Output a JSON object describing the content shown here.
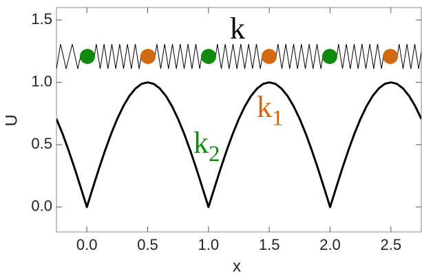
{
  "chart_data": {
    "type": "line",
    "xlabel": "x",
    "ylabel": "U",
    "x": [
      -0.25,
      -0.2,
      -0.15,
      -0.1,
      -0.05,
      0,
      0.05,
      0.1,
      0.15,
      0.2,
      0.25,
      0.3,
      0.35,
      0.4,
      0.45,
      0.5,
      0.55,
      0.6,
      0.65,
      0.7,
      0.75,
      0.8,
      0.85,
      0.9,
      0.95,
      1,
      1.05,
      1.1,
      1.15,
      1.2,
      1.25,
      1.3,
      1.35,
      1.4,
      1.45,
      1.5,
      1.55,
      1.6,
      1.65,
      1.7,
      1.75,
      1.8,
      1.85,
      1.9,
      1.95,
      2,
      2.05,
      2.1,
      2.15,
      2.2,
      2.25,
      2.3,
      2.35,
      2.4,
      2.45,
      2.5,
      2.55,
      2.6,
      2.65,
      2.7,
      2.75
    ],
    "values": [
      0.707,
      0.588,
      0.454,
      0.309,
      0.156,
      0,
      0.156,
      0.309,
      0.454,
      0.588,
      0.707,
      0.809,
      0.891,
      0.951,
      0.988,
      1,
      0.988,
      0.951,
      0.891,
      0.809,
      0.707,
      0.588,
      0.454,
      0.309,
      0.156,
      0,
      0.156,
      0.309,
      0.454,
      0.588,
      0.707,
      0.809,
      0.891,
      0.951,
      0.988,
      1,
      0.988,
      0.951,
      0.891,
      0.809,
      0.707,
      0.588,
      0.454,
      0.309,
      0.156,
      0,
      0.156,
      0.309,
      0.454,
      0.588,
      0.707,
      0.809,
      0.891,
      0.951,
      0.988,
      1,
      0.988,
      0.951,
      0.891,
      0.809,
      0.707
    ],
    "color": "#000000",
    "xlim": [
      -0.25,
      2.75
    ],
    "ylim": [
      -0.2,
      1.6
    ],
    "xticks": [
      {
        "value": 0,
        "label": "0.0"
      },
      {
        "value": 0.5,
        "label": "0.5"
      },
      {
        "value": 1,
        "label": "1.0"
      },
      {
        "value": 1.5,
        "label": "1.5"
      },
      {
        "value": 2,
        "label": "2.0"
      },
      {
        "value": 2.5,
        "label": "2.5"
      }
    ],
    "yticks": [
      {
        "value": 0,
        "label": "0.0"
      },
      {
        "value": 0.5,
        "label": "0.5"
      },
      {
        "value": 1,
        "label": "1.0"
      },
      {
        "value": 1.5,
        "label": "1.5"
      }
    ],
    "mass_colors": [
      "#118a11",
      "#d2680f"
    ],
    "annotations": [
      {
        "text": "k",
        "color": "#000000"
      },
      {
        "text": "k",
        "subscript": "1",
        "color": "#d2680f"
      },
      {
        "text": "k",
        "subscript": "2",
        "color": "#118a11"
      }
    ]
  }
}
